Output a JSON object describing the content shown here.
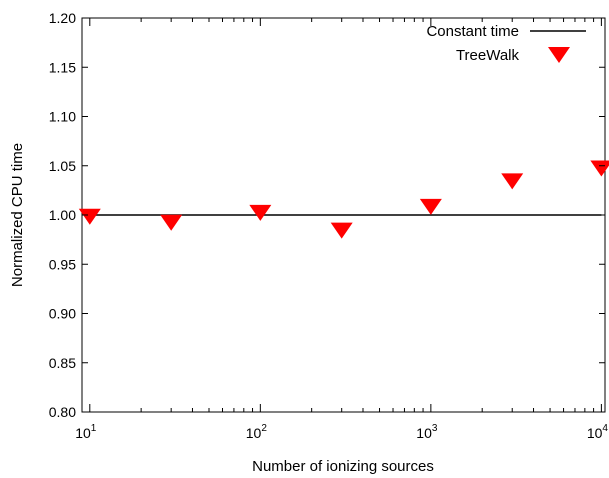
{
  "chart_data": {
    "type": "scatter",
    "xscale": "log",
    "xlim": [
      9,
      10500
    ],
    "ylim": [
      0.8,
      1.2
    ],
    "xlabel": "Number of ionizing sources",
    "ylabel": "Normalized CPU time",
    "x_ticks": [
      {
        "base": "10",
        "exp": "1",
        "value": 10
      },
      {
        "base": "10",
        "exp": "2",
        "value": 100
      },
      {
        "base": "10",
        "exp": "3",
        "value": 1000
      },
      {
        "base": "10",
        "exp": "4",
        "value": 10000
      }
    ],
    "y_ticks": [
      "0.80",
      "0.85",
      "0.90",
      "0.95",
      "1.00",
      "1.05",
      "1.10",
      "1.15",
      "1.20"
    ],
    "legend_position": "top-right",
    "grid": false,
    "series": [
      {
        "name": "Constant time",
        "kind": "line",
        "color": "#000000",
        "y": 1.0
      },
      {
        "name": "TreeWalk",
        "kind": "marker",
        "marker": "down-triangle",
        "color": "#ff0000",
        "x": [
          10,
          30,
          100,
          300,
          1000,
          3000,
          10000
        ],
        "y": [
          0.999,
          0.993,
          1.003,
          0.985,
          1.009,
          1.035,
          1.048
        ]
      }
    ]
  }
}
